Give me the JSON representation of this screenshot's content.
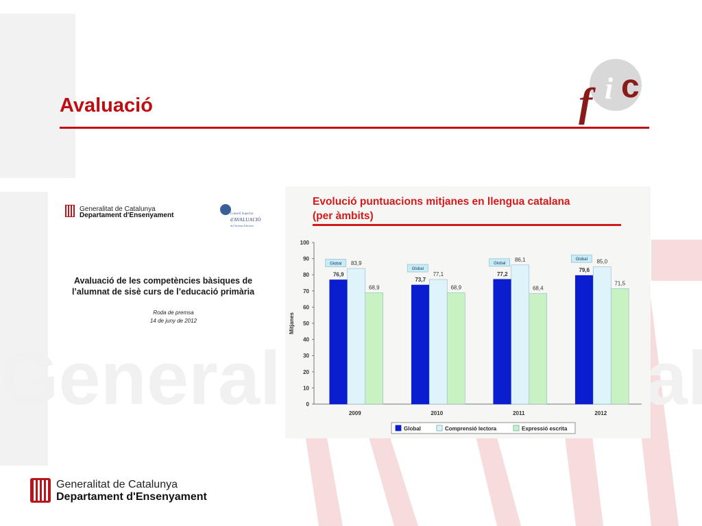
{
  "slide": {
    "title": "Avaluació",
    "colors": {
      "accent": "#c00d12"
    }
  },
  "logo": {
    "text": "fic"
  },
  "cover": {
    "org_line1": "Generalitat de Catalunya",
    "org_line2": "Departament d'Ensenyament",
    "council_line1": "Consell Superior",
    "council_line2": "d'AVALUACIÓ",
    "council_line3": "del Sistema Educatiu",
    "headline_line1": "Avaluació de les competències bàsiques de",
    "headline_line2": "l’alumnat de sisè curs de l’educació primària",
    "press_label": "Roda de premsa",
    "press_date": "14 de juny de 2012"
  },
  "chart_data": {
    "type": "bar",
    "title_line1": "Evolució puntuacions mitjanes en llengua catalana",
    "title_line2": "(per àmbits)",
    "ylabel": "Mitjanes",
    "ylim": [
      0,
      100
    ],
    "ytick_labels": [
      "0",
      "10",
      "20",
      "30",
      "40",
      "50",
      "60",
      "70",
      "80",
      "90",
      "100"
    ],
    "categories": [
      "2009",
      "2010",
      "2011",
      "2012"
    ],
    "series": [
      {
        "name": "Global",
        "values": [
          76.9,
          73.7,
          77.2,
          79.6
        ],
        "labels": [
          "76,9",
          "73,7",
          "77,2",
          "79,6"
        ],
        "color": "#0a1ecf"
      },
      {
        "name": "Comprensió lectora",
        "values": [
          83.9,
          77.1,
          86.1,
          85.0
        ],
        "labels": [
          "83,9",
          "77,1",
          "86,1",
          "85,0"
        ],
        "color": "#dff3fb"
      },
      {
        "name": "Expressió escrita",
        "values": [
          68.9,
          68.9,
          68.4,
          71.5
        ],
        "labels": [
          "68,9",
          "68,9",
          "68,4",
          "71,5"
        ],
        "color": "#c9f2c3"
      }
    ],
    "callout_label": "Global",
    "legend_position": "bottom",
    "grid": false
  },
  "footer": {
    "line1": "Generalitat de Catalunya",
    "line2": "Departament d'Ensenyament"
  }
}
